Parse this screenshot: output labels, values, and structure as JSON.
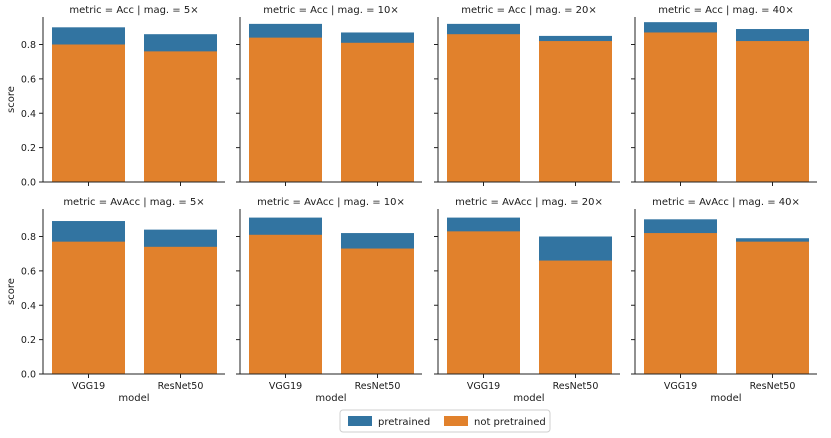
{
  "chart_data": {
    "type": "bar",
    "title": "",
    "xlabel": "model",
    "ylabel": "score",
    "ylim": [
      0,
      0.96
    ],
    "yticks": [
      "0.0",
      "0.2",
      "0.4",
      "0.6",
      "0.8"
    ],
    "categories": [
      "VGG19",
      "ResNet50"
    ],
    "colors": {
      "pretrained": "#3274a1",
      "not pretrained": "#e1812c"
    },
    "legend": {
      "position": "bottom-center",
      "entries": [
        "pretrained",
        "not pretrained"
      ]
    },
    "panels": [
      {
        "title": "metric = Acc | mag. = 5×",
        "pretrained": [
          0.9,
          0.86
        ],
        "not_pretrained": [
          0.8,
          0.76
        ]
      },
      {
        "title": "metric = Acc | mag. = 10×",
        "pretrained": [
          0.92,
          0.87
        ],
        "not_pretrained": [
          0.84,
          0.81
        ]
      },
      {
        "title": "metric = Acc | mag. = 20×",
        "pretrained": [
          0.92,
          0.85
        ],
        "not_pretrained": [
          0.86,
          0.82
        ]
      },
      {
        "title": "metric = Acc | mag. = 40×",
        "pretrained": [
          0.93,
          0.89
        ],
        "not_pretrained": [
          0.87,
          0.82
        ]
      },
      {
        "title": "metric = AvAcc | mag. = 5×",
        "pretrained": [
          0.89,
          0.84
        ],
        "not_pretrained": [
          0.77,
          0.74
        ]
      },
      {
        "title": "metric = AvAcc | mag. = 10×",
        "pretrained": [
          0.91,
          0.82
        ],
        "not_pretrained": [
          0.81,
          0.73
        ]
      },
      {
        "title": "metric = AvAcc | mag. = 20×",
        "pretrained": [
          0.91,
          0.8
        ],
        "not_pretrained": [
          0.83,
          0.66
        ]
      },
      {
        "title": "metric = AvAcc | mag. = 40×",
        "pretrained": [
          0.9,
          0.79
        ],
        "not_pretrained": [
          0.82,
          0.77
        ]
      }
    ]
  }
}
